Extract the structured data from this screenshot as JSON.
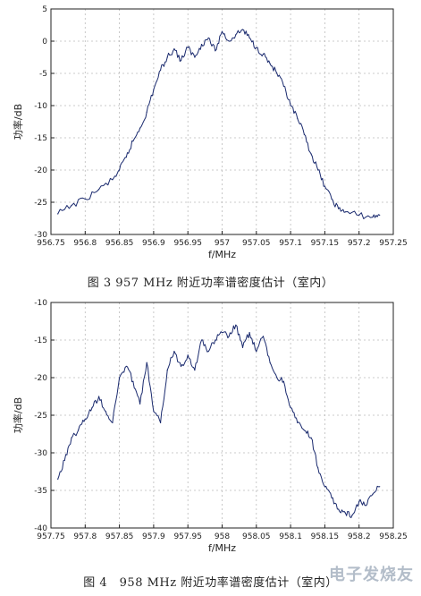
{
  "captions": [
    "图 3 957 MHz 附近功率谱密度估计（室内）",
    "图 4　958 MHz 附近功率谱密度估计（室内）"
  ],
  "watermark": "电子发烧友",
  "chart_data": [
    {
      "type": "line",
      "title": "",
      "xlabel": "f/MHz",
      "ylabel": "功率/dB",
      "xlim": [
        956.75,
        957.25
      ],
      "ylim": [
        -30,
        5
      ],
      "xticks": [
        956.75,
        956.8,
        956.85,
        956.9,
        956.95,
        957,
        957.05,
        957.1,
        957.15,
        957.2,
        957.25
      ],
      "xtick_labels": [
        "956.75",
        "956.8",
        "956.85",
        "956.9",
        "956.95",
        "957",
        "957.05",
        "957.1",
        "957.15",
        "957.2",
        "957.25"
      ],
      "yticks": [
        -30,
        -25,
        -20,
        -15,
        -10,
        -5,
        0,
        5
      ],
      "ytick_labels": [
        "-30",
        "-25",
        "-20",
        "-15",
        "-10",
        "-5",
        "0",
        "5"
      ],
      "grid": "dashed",
      "series": [
        {
          "color": "#1a2a6e",
          "x": [
            956.76,
            956.78,
            956.8,
            956.82,
            956.84,
            956.85,
            956.86,
            956.87,
            956.88,
            956.89,
            956.9,
            956.91,
            956.92,
            956.93,
            956.94,
            956.95,
            956.96,
            956.97,
            956.98,
            956.99,
            957.0,
            957.01,
            957.02,
            957.03,
            957.04,
            957.05,
            957.06,
            957.07,
            957.08,
            957.09,
            957.1,
            957.11,
            957.12,
            957.13,
            957.14,
            957.15,
            957.16,
            957.17,
            957.18,
            957.2,
            957.22,
            957.23
          ],
          "y": [
            -26.8,
            -25.5,
            -24.5,
            -23.0,
            -21.5,
            -20.0,
            -18.0,
            -15.5,
            -13.5,
            -11.0,
            -7.5,
            -4.5,
            -2.5,
            -1.2,
            -3.0,
            -1.0,
            -2.5,
            -0.5,
            0.5,
            -1.5,
            1.5,
            0.0,
            1.0,
            1.8,
            0.5,
            -1.0,
            -2.0,
            -3.5,
            -5.0,
            -7.0,
            -10.0,
            -12.0,
            -14.5,
            -17.5,
            -20.0,
            -22.5,
            -24.5,
            -26.0,
            -26.5,
            -27.0,
            -27.3,
            -27.0
          ]
        }
      ]
    },
    {
      "type": "line",
      "title": "",
      "xlabel": "f/MHz",
      "ylabel": "功率/dB",
      "xlim": [
        957.75,
        958.25
      ],
      "ylim": [
        -40,
        -10
      ],
      "xticks": [
        957.75,
        957.8,
        957.85,
        957.9,
        957.95,
        958,
        958.05,
        958.1,
        958.15,
        958.2,
        958.25
      ],
      "xtick_labels": [
        "957.75",
        "957.8",
        "957.85",
        "957.9",
        "957.95",
        "958",
        "958.05",
        "958.1",
        "958.15",
        "958.2",
        "958.25"
      ],
      "yticks": [
        -40,
        -35,
        -30,
        -25,
        -20,
        -15,
        -10
      ],
      "ytick_labels": [
        "-40",
        "-35",
        "-30",
        "-25",
        "-20",
        "-15",
        "-10"
      ],
      "grid": "dashed",
      "series": [
        {
          "color": "#1a2a6e",
          "x": [
            957.76,
            957.77,
            957.78,
            957.79,
            957.8,
            957.81,
            957.82,
            957.83,
            957.84,
            957.85,
            957.86,
            957.87,
            957.88,
            957.89,
            957.9,
            957.91,
            957.92,
            957.93,
            957.94,
            957.95,
            957.96,
            957.97,
            957.98,
            957.99,
            958.0,
            958.01,
            958.02,
            958.03,
            958.04,
            958.05,
            958.06,
            958.07,
            958.08,
            958.09,
            958.1,
            958.11,
            958.12,
            958.13,
            958.14,
            958.15,
            958.16,
            958.17,
            958.18,
            958.19,
            958.2,
            958.21,
            958.22,
            958.23
          ],
          "y": [
            -33.5,
            -31.0,
            -28.0,
            -27.0,
            -25.5,
            -24.0,
            -22.5,
            -24.5,
            -26.0,
            -20.0,
            -18.5,
            -20.5,
            -23.5,
            -18.0,
            -24.5,
            -26.0,
            -19.0,
            -16.5,
            -18.5,
            -17.0,
            -19.0,
            -15.0,
            -16.5,
            -15.0,
            -14.0,
            -14.5,
            -13.0,
            -16.0,
            -14.0,
            -16.5,
            -14.5,
            -18.0,
            -20.0,
            -20.5,
            -24.0,
            -26.0,
            -27.0,
            -28.0,
            -32.0,
            -34.5,
            -36.0,
            -37.5,
            -38.0,
            -38.3,
            -36.5,
            -37.0,
            -35.5,
            -34.5
          ]
        }
      ]
    }
  ]
}
